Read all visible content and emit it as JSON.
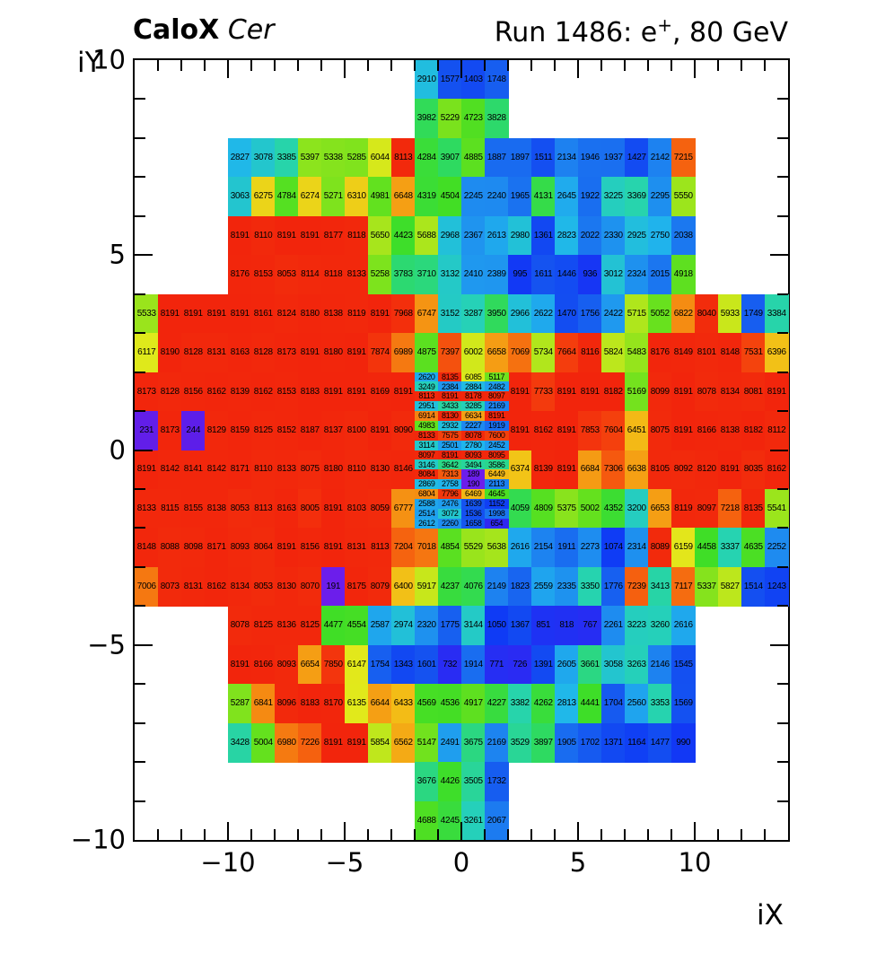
{
  "header": {
    "title_bold": "CaloX",
    "title_italic": "Cer",
    "run_prefix": "Run 1486: e",
    "run_sup": "+",
    "run_suffix": ", 80 GeV"
  },
  "chart_data": {
    "type": "heatmap",
    "title": "CaloX Cer",
    "subtitle": "Run 1486: e+, 80 GeV",
    "xlabel": "iX",
    "ylabel": "iY",
    "xlim": [
      -14,
      14
    ],
    "ylim": [
      -10,
      10
    ],
    "zmin": 0,
    "zmax": 8191,
    "grid": false,
    "x_major_ticks": [
      -10,
      -5,
      0,
      5,
      10
    ],
    "x_major_labels": [
      "−10",
      "−5",
      "0",
      "5",
      "10"
    ],
    "y_major_ticks": [
      10,
      5,
      0,
      -5,
      -10
    ],
    "y_major_labels": [
      "10",
      "5",
      "0",
      "−5",
      "−10"
    ],
    "palette_stops": [
      [
        0.0,
        "#7820EE"
      ],
      [
        0.025,
        "#6B1EEB"
      ],
      [
        0.031,
        "#5A1EE8"
      ],
      [
        0.08,
        "#3028F2"
      ],
      [
        0.125,
        "#0F3AF5"
      ],
      [
        0.2,
        "#1554F0"
      ],
      [
        0.27,
        "#1E88F0"
      ],
      [
        0.34,
        "#20B6EC"
      ],
      [
        0.405,
        "#26D3B4"
      ],
      [
        0.475,
        "#2EDA62"
      ],
      [
        0.545,
        "#3FDE26"
      ],
      [
        0.615,
        "#66E11E"
      ],
      [
        0.685,
        "#A2E51C"
      ],
      [
        0.75,
        "#E2E91B"
      ],
      [
        0.778,
        "#F2C417"
      ],
      [
        0.81,
        "#F5A014"
      ],
      [
        0.865,
        "#F56F10"
      ],
      [
        0.92,
        "#F4430D"
      ],
      [
        1.0,
        "#F2250C"
      ]
    ],
    "rows": [
      {
        "iy": 9,
        "segments": [
          {
            "ix0": -2,
            "values": [
              2910,
              1577,
              1403,
              1748
            ]
          }
        ]
      },
      {
        "iy": 8,
        "segments": [
          {
            "ix0": -2,
            "values": [
              3982,
              5229,
              4723,
              3828
            ]
          }
        ]
      },
      {
        "iy": 7,
        "segments": [
          {
            "ix0": -10,
            "values": [
              2827,
              3078,
              3385,
              5397,
              5338,
              5285,
              6044,
              8113,
              4284,
              3907,
              4885,
              1887,
              1897,
              1511,
              2134,
              1946,
              1937,
              1427,
              2142,
              7215
            ]
          }
        ]
      },
      {
        "iy": 6,
        "segments": [
          {
            "ix0": -10,
            "values": [
              3063,
              6275,
              4784,
              6274,
              5271,
              6310,
              4981,
              6648,
              4319,
              4504,
              2245,
              2240,
              1965,
              4131,
              2645,
              1922,
              3225,
              3369,
              2295,
              5550
            ]
          }
        ]
      },
      {
        "iy": 5,
        "segments": [
          {
            "ix0": -10,
            "values": [
              8191,
              8110,
              8191,
              8191,
              8177,
              8118,
              5650,
              4423,
              5688,
              2968,
              2367,
              2613,
              2980,
              1361,
              2823,
              2022,
              2330,
              2925,
              2750,
              2038
            ]
          }
        ]
      },
      {
        "iy": 4,
        "segments": [
          {
            "ix0": -10,
            "values": [
              8176,
              8153,
              8053,
              8114,
              8118,
              8133,
              5258,
              3783,
              3710,
              3132,
              2410,
              2389,
              995,
              1611,
              1446,
              936,
              3012,
              2324,
              2015,
              4918
            ]
          }
        ]
      },
      {
        "iy": 3,
        "segments": [
          {
            "ix0": -14,
            "values": [
              5533,
              8191,
              8191,
              8191,
              8191,
              8161,
              8124,
              8180,
              8138,
              8119,
              8191,
              7968,
              6747,
              3152,
              3287,
              3950,
              2966,
              2622,
              1470,
              1756,
              2422,
              5715,
              5052,
              6822,
              8040,
              5933,
              1749,
              3384
            ]
          }
        ]
      },
      {
        "iy": 2,
        "segments": [
          {
            "ix0": -14,
            "values": [
              6117,
              8190,
              8128,
              8131,
              8163,
              8128,
              8173,
              8191,
              8180,
              8191,
              7874,
              6989,
              4875,
              7397,
              6002,
              6658,
              7069,
              5734,
              7664,
              8116,
              5824,
              5483,
              8176,
              8149,
              8101,
              8148,
              7531,
              6396
            ]
          }
        ]
      },
      {
        "iy": 1,
        "segments": [
          {
            "ix0": -14,
            "values": [
              8173,
              8128,
              8156,
              8162,
              8139,
              8162,
              8153,
              8183,
              8191,
              8191,
              8169,
              8191
            ]
          },
          {
            "ix0": 2,
            "values": [
              8191,
              7733,
              8191,
              8191,
              8182,
              5169,
              8099,
              8191,
              8078,
              8134,
              8081,
              8191
            ]
          }
        ]
      },
      {
        "iy": 0,
        "segments": [
          {
            "ix0": -14,
            "values": [
              231,
              8173,
              244,
              8129,
              8159,
              8125,
              8152,
              8187,
              8137,
              8100,
              8191,
              8090
            ]
          },
          {
            "ix0": 2,
            "values": [
              8191,
              8162,
              8191,
              7853,
              7604,
              6451,
              8075,
              8191,
              8166,
              8138,
              8182,
              8112
            ]
          }
        ]
      },
      {
        "iy": -1,
        "segments": [
          {
            "ix0": -14,
            "values": [
              8191,
              8142,
              8141,
              8142,
              8171,
              8110,
              8133,
              8075,
              8180,
              8110,
              8130,
              8146
            ]
          },
          {
            "ix0": 2,
            "values": [
              6374,
              8139,
              8191,
              6684,
              7306,
              6638,
              8105,
              8092,
              8120,
              8191,
              8035,
              8162
            ]
          }
        ]
      },
      {
        "iy": -2,
        "segments": [
          {
            "ix0": -14,
            "values": [
              8133,
              8115,
              8155,
              8138,
              8053,
              8113,
              8163,
              8005,
              8191,
              8103,
              8059,
              6777
            ]
          },
          {
            "ix0": 2,
            "values": [
              4059,
              4809,
              5375,
              5002,
              4352,
              3200,
              6653,
              8119,
              8097,
              7218,
              8135,
              5541
            ]
          }
        ]
      },
      {
        "iy": -3,
        "segments": [
          {
            "ix0": -14,
            "values": [
              8148,
              8088,
              8098,
              8171,
              8093,
              8064,
              8191,
              8156,
              8191,
              8131,
              8113,
              7204,
              7018,
              4854,
              5529,
              5638,
              2616,
              2154,
              1911,
              2273,
              1074,
              2314,
              8089,
              6159,
              4458,
              3337,
              4635,
              2252
            ]
          }
        ]
      },
      {
        "iy": -4,
        "segments": [
          {
            "ix0": -14,
            "values": [
              7006,
              8073,
              8131,
              8162,
              8134,
              8053,
              8130,
              8070,
              191,
              8175,
              8079,
              6400,
              5917,
              4237,
              4076,
              2149,
              1823,
              2559,
              2335,
              3350,
              1776,
              7239,
              3413,
              7117,
              5337,
              5827,
              1514,
              1243
            ]
          }
        ]
      },
      {
        "iy": -5,
        "segments": [
          {
            "ix0": -10,
            "values": [
              8078,
              8125,
              8136,
              8125,
              4477,
              4554,
              2587,
              2974,
              2320,
              1775,
              3144,
              1050,
              1367,
              851,
              818,
              767,
              2261,
              3223,
              3260,
              2616
            ]
          }
        ]
      },
      {
        "iy": -6,
        "segments": [
          {
            "ix0": -10,
            "values": [
              8191,
              8166,
              8093,
              6654,
              7850,
              6147,
              1754,
              1343,
              1601,
              732,
              1914,
              771,
              726,
              1391,
              2605,
              3661,
              3058,
              3263,
              2146,
              1545
            ]
          }
        ]
      },
      {
        "iy": -7,
        "segments": [
          {
            "ix0": -10,
            "values": [
              5287,
              6841,
              8096,
              8183,
              8170,
              6135,
              6644,
              6433,
              4569,
              4536,
              4917,
              4227,
              3382,
              4262,
              2813,
              4441,
              1704,
              2560,
              3353,
              1569
            ]
          }
        ]
      },
      {
        "iy": -8,
        "segments": [
          {
            "ix0": -10,
            "values": [
              3428,
              5004,
              6980,
              7226,
              8191,
              8191,
              5854,
              6562,
              5147,
              2491,
              3675,
              2169,
              3529,
              3897,
              1905,
              1702,
              1371,
              1164,
              1477,
              990
            ]
          }
        ]
      },
      {
        "iy": -9,
        "segments": [
          {
            "ix0": -2,
            "values": [
              3676,
              4426,
              3505,
              1732
            ]
          }
        ]
      },
      {
        "iy": -10,
        "segments": [
          {
            "ix0": -2,
            "values": [
              4688,
              4245,
              3261,
              2067
            ]
          }
        ]
      }
    ],
    "fine_block": {
      "ix0": -2,
      "iy_top": 2,
      "cols": 4,
      "cell_w": 1,
      "cell_h": 0.25,
      "values": [
        [
          2620,
          8135,
          6085,
          5117
        ],
        [
          3249,
          2384,
          2884,
          2482
        ],
        [
          8113,
          8191,
          8178,
          8097
        ],
        [
          2951,
          3433,
          3285,
          2169
        ],
        [
          6914,
          8130,
          6634,
          8191
        ],
        [
          4983,
          2932,
          2227,
          1919
        ],
        [
          8133,
          7575,
          8078,
          7600
        ],
        [
          3114,
          2501,
          2780,
          2452
        ],
        [
          8097,
          8191,
          8093,
          8095
        ],
        [
          3146,
          3642,
          3494,
          3586
        ],
        [
          8084,
          7313,
          189,
          6449
        ],
        [
          2869,
          2758,
          190,
          2113
        ],
        [
          6804,
          7796,
          6469,
          4645
        ],
        [
          2588,
          2476,
          1639,
          1152
        ],
        [
          2514,
          3072,
          1536,
          1998
        ],
        [
          2612,
          2260,
          1658,
          654
        ]
      ]
    }
  }
}
